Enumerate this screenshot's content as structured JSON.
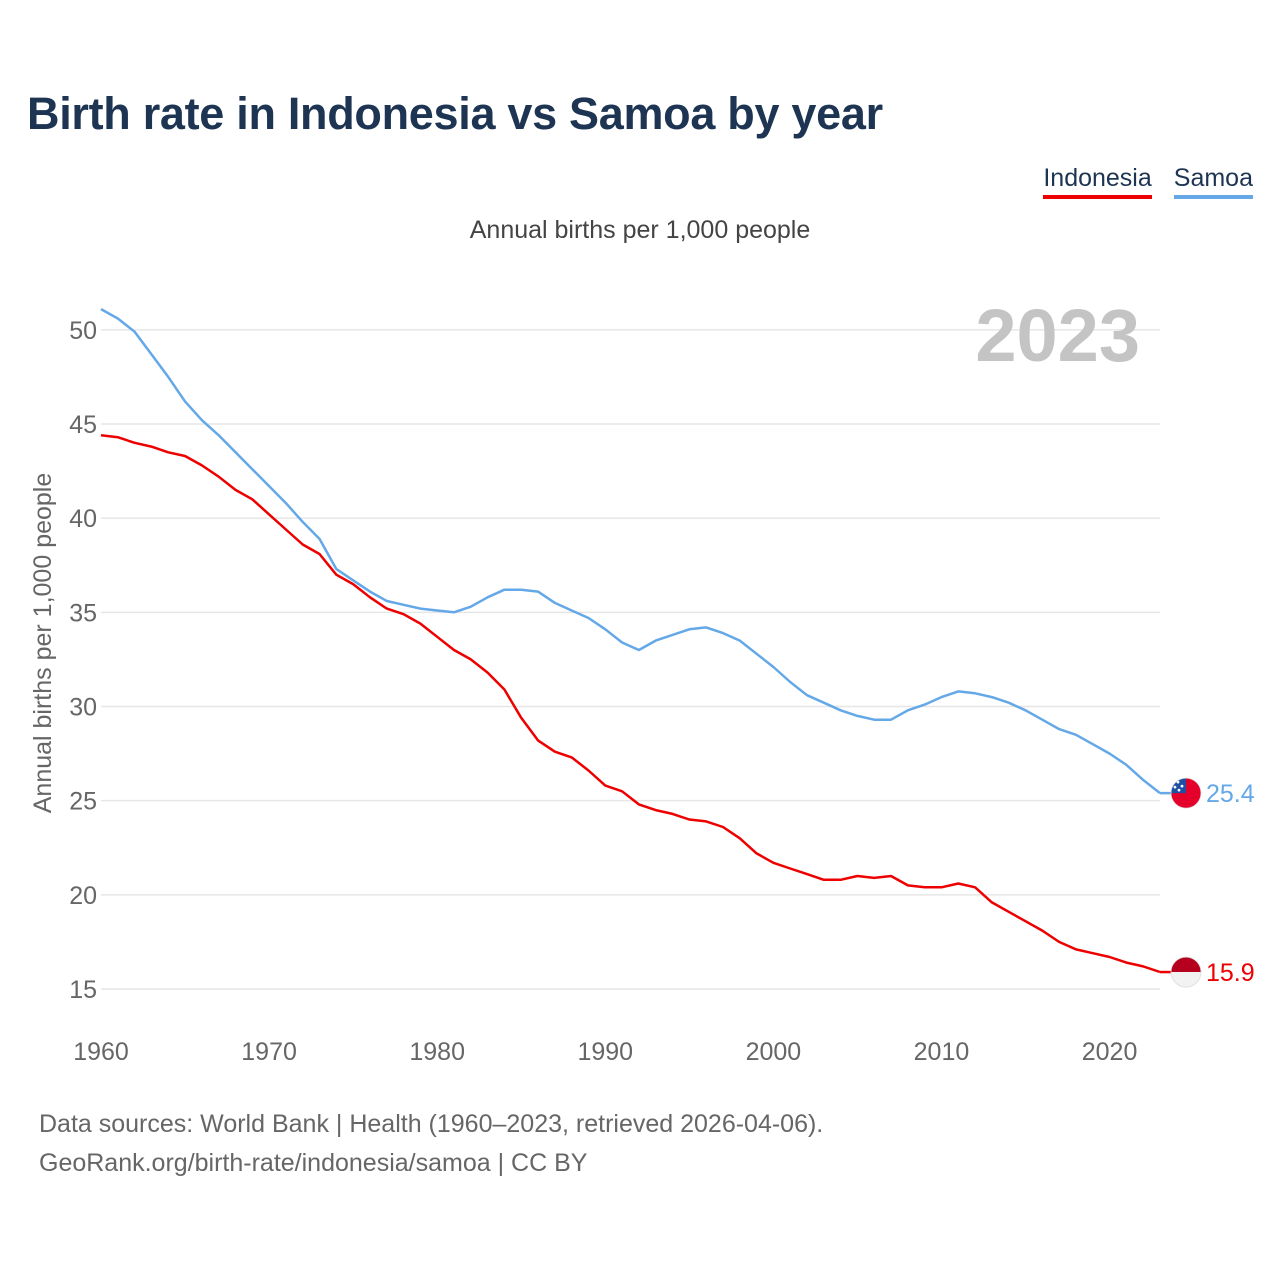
{
  "title": "Birth rate in Indonesia vs Samoa by year",
  "legend": {
    "indonesia": "Indonesia",
    "samoa": "Samoa"
  },
  "subtitle": "Annual births per 1,000 people",
  "year_label": "2023",
  "footer": {
    "line1": "Data sources: World Bank | Health (1960–2023, retrieved 2026-04-06).",
    "line2": "GeoRank.org/birth-rate/indonesia/samoa | CC BY"
  },
  "colors": {
    "indonesia": "#ee0000",
    "samoa": "#64a8e8",
    "grid": "#e6e6e6",
    "axis_text": "#666666",
    "year": "#c4c4c4"
  },
  "chart_data": {
    "type": "line",
    "title": "Birth rate in Indonesia vs Samoa by year",
    "xlabel": "",
    "ylabel": "Annual births per 1,000 people",
    "xlim": [
      1960,
      2023
    ],
    "ylim": [
      15,
      51
    ],
    "x_ticks": [
      "1960",
      "1970",
      "1980",
      "1990",
      "2000",
      "2010",
      "2020"
    ],
    "y_ticks": [
      "15",
      "20",
      "25",
      "30",
      "35",
      "40",
      "45",
      "50"
    ],
    "x": [
      1960,
      1961,
      1962,
      1963,
      1964,
      1965,
      1966,
      1967,
      1968,
      1969,
      1970,
      1971,
      1972,
      1973,
      1974,
      1975,
      1976,
      1977,
      1978,
      1979,
      1980,
      1981,
      1982,
      1983,
      1984,
      1985,
      1986,
      1987,
      1988,
      1989,
      1990,
      1991,
      1992,
      1993,
      1994,
      1995,
      1996,
      1997,
      1998,
      1999,
      2000,
      2001,
      2002,
      2003,
      2004,
      2005,
      2006,
      2007,
      2008,
      2009,
      2010,
      2011,
      2012,
      2013,
      2014,
      2015,
      2016,
      2017,
      2018,
      2019,
      2020,
      2021,
      2022,
      2023
    ],
    "series": [
      {
        "name": "Indonesia",
        "end_label": "15.9",
        "values": [
          44.4,
          44.3,
          44.0,
          43.8,
          43.5,
          43.3,
          42.8,
          42.2,
          41.5,
          41.0,
          40.2,
          39.4,
          38.6,
          38.1,
          37.0,
          36.5,
          35.8,
          35.2,
          34.9,
          34.4,
          33.7,
          33.0,
          32.5,
          31.8,
          30.9,
          29.4,
          28.2,
          27.6,
          27.3,
          26.6,
          25.8,
          25.5,
          24.8,
          24.5,
          24.3,
          24.0,
          23.9,
          23.6,
          23.0,
          22.2,
          21.7,
          21.4,
          21.1,
          20.8,
          20.8,
          21.0,
          20.9,
          21.0,
          20.5,
          20.4,
          20.4,
          20.6,
          20.4,
          19.6,
          19.1,
          18.6,
          18.1,
          17.5,
          17.1,
          16.9,
          16.7,
          16.4,
          16.2,
          15.9
        ]
      },
      {
        "name": "Samoa",
        "end_label": "25.4",
        "values": [
          51.1,
          50.6,
          49.9,
          48.7,
          47.5,
          46.2,
          45.2,
          44.4,
          43.5,
          42.6,
          41.7,
          40.8,
          39.8,
          38.9,
          37.3,
          36.7,
          36.1,
          35.6,
          35.4,
          35.2,
          35.1,
          35.0,
          35.3,
          35.8,
          36.2,
          36.2,
          36.1,
          35.5,
          35.1,
          34.7,
          34.1,
          33.4,
          33.0,
          33.5,
          33.8,
          34.1,
          34.2,
          33.9,
          33.5,
          32.8,
          32.1,
          31.3,
          30.6,
          30.2,
          29.8,
          29.5,
          29.3,
          29.3,
          29.8,
          30.1,
          30.5,
          30.8,
          30.7,
          30.5,
          30.2,
          29.8,
          29.3,
          28.8,
          28.5,
          28.0,
          27.5,
          26.9,
          26.1,
          25.4
        ]
      }
    ]
  }
}
